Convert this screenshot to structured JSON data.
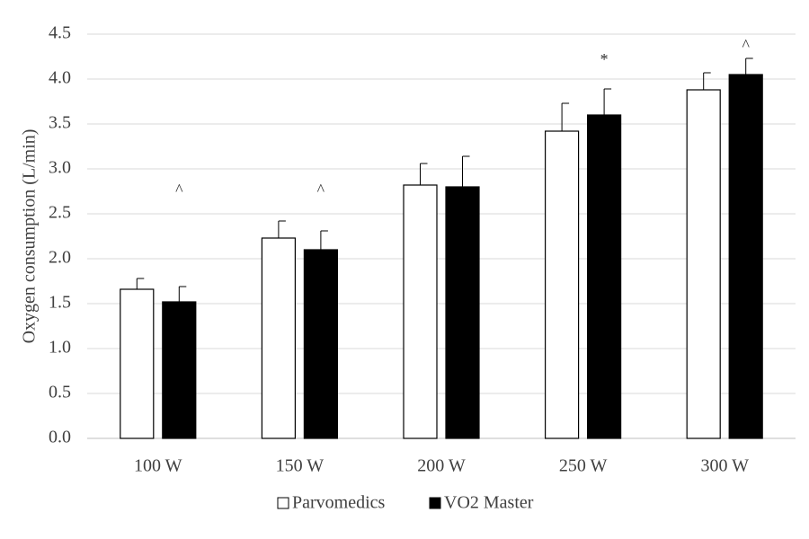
{
  "chart_data": {
    "type": "bar",
    "ylabel": "Oxygen consumption (L/min)",
    "xlabel": "",
    "title": "",
    "ylim": [
      0,
      4.5
    ],
    "yticks": [
      "0.0",
      "0.5",
      "1.0",
      "1.5",
      "2.0",
      "2.5",
      "3.0",
      "3.5",
      "4.0",
      "4.5"
    ],
    "grid": true,
    "legend_position": "bottom",
    "categories": [
      "100 W",
      "150 W",
      "200 W",
      "250 W",
      "300 W"
    ],
    "series": [
      {
        "name": "Parvomedics",
        "fill": "#ffffff",
        "stroke": "#000000",
        "values": [
          1.66,
          2.23,
          2.82,
          3.42,
          3.88
        ],
        "error": [
          0.12,
          0.19,
          0.24,
          0.31,
          0.19
        ]
      },
      {
        "name": "VO2 Master",
        "fill": "#000000",
        "stroke": "#000000",
        "values": [
          1.52,
          2.1,
          2.8,
          3.6,
          4.05
        ],
        "error": [
          0.17,
          0.21,
          0.34,
          0.29,
          0.18
        ]
      }
    ],
    "annotations": [
      {
        "category": "100 W",
        "text": "^"
      },
      {
        "category": "150 W",
        "text": "^"
      },
      {
        "category": "250 W",
        "text": "*"
      },
      {
        "category": "300 W",
        "text": "^"
      }
    ]
  },
  "colors": {
    "grid": "#d9d9d9",
    "axis": "#bfbfbf",
    "text": "#404040"
  }
}
